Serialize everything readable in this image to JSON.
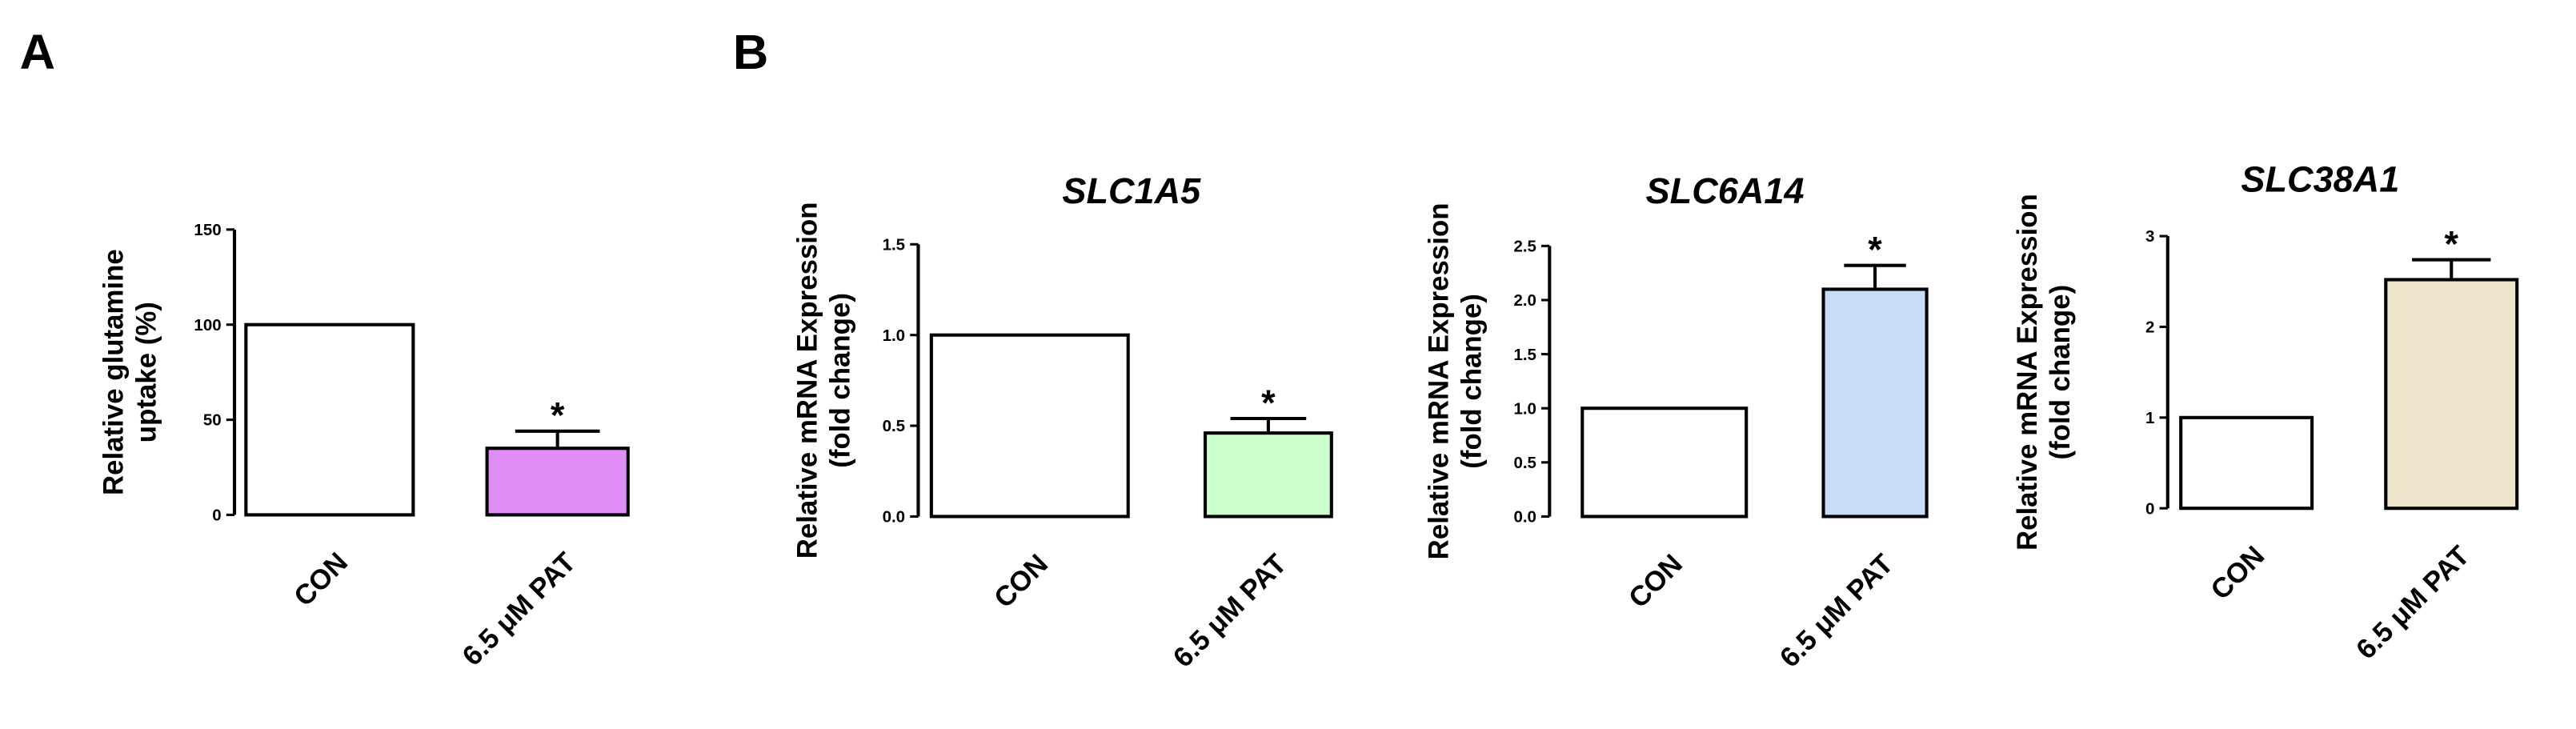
{
  "chart_data": [
    {
      "type": "bar",
      "panel_label": "A",
      "ylabel": [
        "Relative glutamine",
        "uptake (%)"
      ],
      "categories": [
        "CON",
        "6.5 μM PAT"
      ],
      "values": [
        100,
        35
      ],
      "errors": [
        0,
        9
      ],
      "colors": [
        "#ffffff",
        "#e08ef5"
      ],
      "value_annotations": [
        null,
        "*"
      ],
      "ylim": [
        0,
        150
      ],
      "yticks": [
        0,
        50,
        100,
        150
      ]
    },
    {
      "type": "bar",
      "panel_label": "B",
      "title": "SLC1A5",
      "ylabel": [
        "Relative mRNA Expression",
        "(fold change)"
      ],
      "categories": [
        "CON",
        "6.5 μM PAT"
      ],
      "values": [
        1.0,
        0.46
      ],
      "errors": [
        0,
        0.08
      ],
      "colors": [
        "#ffffff",
        "#ccffcc"
      ],
      "value_annotations": [
        null,
        "*"
      ],
      "ylim": [
        0,
        1.5
      ],
      "yticks": [
        {
          "value": 0,
          "label": "0.0"
        },
        {
          "value": 0.5,
          "label": "0.5"
        },
        {
          "value": 1,
          "label": "1.0"
        },
        {
          "value": 1.5,
          "label": "1.5"
        }
      ]
    },
    {
      "type": "bar",
      "title": "SLC6A14",
      "ylabel": [
        "Relative mRNA Expression",
        "(fold change)"
      ],
      "categories": [
        "CON",
        "6.5 μM PAT"
      ],
      "values": [
        1.0,
        2.1
      ],
      "errors": [
        0,
        0.22
      ],
      "colors": [
        "#ffffff",
        "#c9dcf5"
      ],
      "value_annotations": [
        null,
        "*"
      ],
      "ylim": [
        0,
        2.5
      ],
      "yticks": [
        {
          "value": 0,
          "label": "0.0"
        },
        {
          "value": 0.5,
          "label": "0.5"
        },
        {
          "value": 1,
          "label": "1.0"
        },
        {
          "value": 1.5,
          "label": "1.5"
        },
        {
          "value": 2,
          "label": "2.0"
        },
        {
          "value": 2.5,
          "label": "2.5"
        }
      ]
    },
    {
      "type": "bar",
      "title": "SLC38A1",
      "ylabel": [
        "Relative mRNA Expression",
        "(fold change)"
      ],
      "categories": [
        "CON",
        "6.5 μM PAT"
      ],
      "values": [
        1.0,
        2.52
      ],
      "errors": [
        0,
        0.22
      ],
      "colors": [
        "#ffffff",
        "#ece5cc"
      ],
      "value_annotations": [
        null,
        "*"
      ],
      "ylim": [
        0,
        3
      ],
      "yticks": [
        0,
        1,
        2,
        3
      ]
    }
  ]
}
